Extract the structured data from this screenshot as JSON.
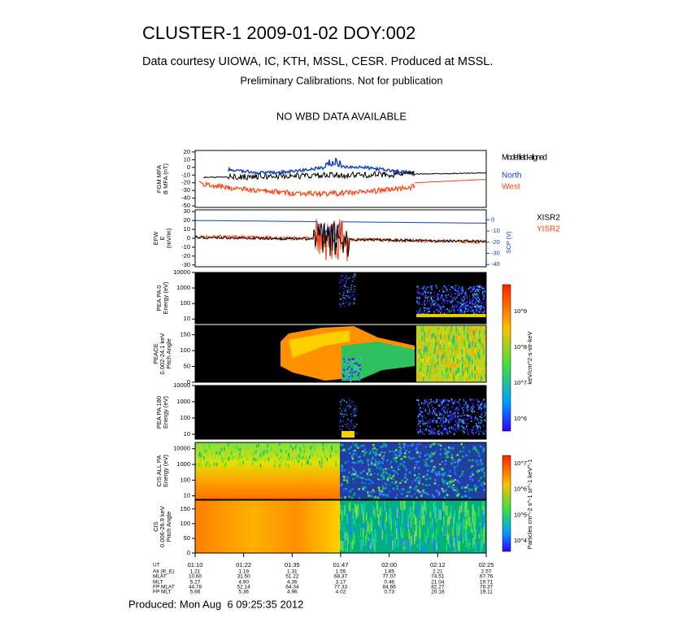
{
  "header": {
    "title": "CLUSTER-1 2009-01-02 DOY:002",
    "subtitle": "Data courtesy UIOWA, IC, KTH, MSSL, CESR. Produced at MSSL.",
    "note": "Preliminary Calibrations. Not for publication",
    "wbd": "NO WBD DATA AVAILABLE"
  },
  "panels": [
    {
      "label": [
        "FGM MFA",
        "B MFA (nT)"
      ],
      "ylim": [
        -52,
        22
      ],
      "yticks": [
        20,
        10,
        0,
        -10,
        -20,
        -30,
        -40,
        -50
      ],
      "legend": [
        "Model field-aligned",
        "North",
        "West"
      ],
      "legend_colors": [
        "#000000",
        "#1040c0",
        "#ff4010"
      ]
    },
    {
      "label": [
        "EFW",
        "E",
        "(mV/m)"
      ],
      "ylim": [
        -32,
        32
      ],
      "yticks": [
        30,
        20,
        10,
        0,
        -10,
        -20,
        -30
      ],
      "y2label": "SCP (V)",
      "y2lim": [
        -42,
        9
      ],
      "y2ticks": [
        0,
        -10,
        -20,
        -30,
        -40
      ],
      "legend": [
        "XISR2",
        "YISR2"
      ],
      "legend_colors": [
        "#000000",
        "#ff4010"
      ]
    },
    {
      "label": [
        "PEA PA 0",
        "Energy (eV)"
      ],
      "log": true,
      "ylim": [
        5,
        10000
      ],
      "yticks": [
        10000,
        1000,
        100,
        10
      ]
    },
    {
      "label": [
        "PEACE",
        "0.002-24.1 keV",
        "Pitch Angle"
      ],
      "ylim": [
        0,
        180
      ],
      "yticks": [
        150,
        100,
        50,
        0
      ]
    },
    {
      "label": [
        "PEA PA 180",
        "Energy (eV)"
      ],
      "log": true,
      "ylim": [
        5,
        10000
      ],
      "yticks": [
        10000,
        1000,
        100,
        10
      ]
    },
    {
      "label": [
        "CIS ALL PA",
        "Energy (eV)"
      ],
      "log": true,
      "ylim": [
        6,
        25000
      ],
      "yticks": [
        10000,
        1000,
        100,
        10
      ]
    },
    {
      "label": [
        "CIS",
        "0.006-26.9 keV",
        "Pitch Angle"
      ],
      "ylim": [
        0,
        180
      ],
      "yticks": [
        150,
        100,
        50,
        0
      ]
    }
  ],
  "colorbars": [
    {
      "label": "keV/cm^2-s-str-keV",
      "ticks": [
        "10^9",
        "10^8",
        "10^7",
        "10^6"
      ]
    },
    {
      "label": "Particles cm^-2 s^-1 sr^-1 keV^-1",
      "ticks": [
        "10^7",
        "10^6",
        "10^5",
        "10^4"
      ]
    }
  ],
  "ephemeris": {
    "times": [
      "01:10",
      "01:22",
      "01:35",
      "01:47",
      "02:00",
      "02:12",
      "02:25"
    ],
    "rows": [
      {
        "name": "UT"
      },
      {
        "name": "Alt (R_E)",
        "values": [
          "1.21",
          "1.19",
          "1.31",
          "1.55",
          "1.85",
          "2.21",
          "2.57"
        ]
      },
      {
        "name": "MLAT",
        "values": [
          "10.60",
          "31.50",
          "51.22",
          "68.37",
          "77.07",
          "74.51",
          "67.76"
        ]
      },
      {
        "name": "MLT",
        "values": [
          "5.27",
          "4.90",
          "4.36",
          "3.17",
          "0.46",
          "21.04",
          "19.71"
        ]
      },
      {
        "name": "FP MLAT",
        "values": [
          "44.78",
          "52.14",
          "64.34",
          "77.33",
          "84.66",
          "82.27",
          "78.37"
        ]
      },
      {
        "name": "FP MLT",
        "values": [
          "5.66",
          "5.36",
          "4.96",
          "4.02",
          "0.73",
          "20.18",
          "19.11"
        ]
      }
    ]
  },
  "footer": "Produced: Mon Aug  6 09:25:35 2012"
}
